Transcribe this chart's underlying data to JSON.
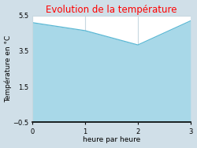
{
  "title": "Evolution de la température",
  "xlabel": "heure par heure",
  "ylabel": "Température en °C",
  "x": [
    0,
    1,
    2,
    3
  ],
  "y": [
    5.1,
    4.65,
    3.85,
    5.2
  ],
  "ylim": [
    -0.5,
    5.5
  ],
  "xlim": [
    0,
    3
  ],
  "yticks": [
    -0.5,
    1.5,
    3.5,
    5.5
  ],
  "xticks": [
    0,
    1,
    2,
    3
  ],
  "title_color": "#ff0000",
  "line_color": "#5bb8d4",
  "fill_color": "#a8d8e8",
  "fill_alpha": 1.0,
  "bg_color": "#d0dfe8",
  "plot_bg_color": "#ffffff",
  "grid_color": "#c8d8e0",
  "title_fontsize": 8.5,
  "label_fontsize": 6.5,
  "tick_fontsize": 6
}
